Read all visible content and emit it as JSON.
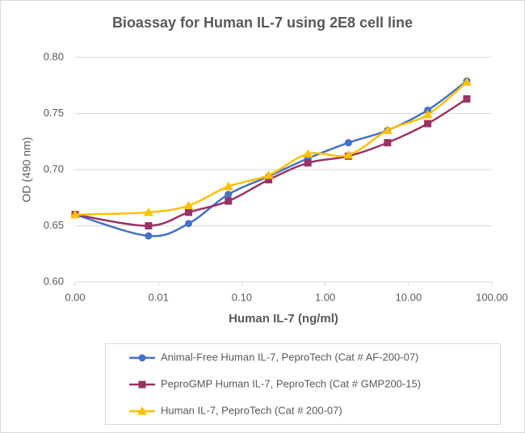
{
  "chart_data": {
    "type": "line",
    "title": "Bioassay for Human IL-7 using 2E8 cell line",
    "x_label": "Human IL-7 (ng/ml)",
    "y_label": "OD (490 nm)",
    "x": [
      0.001,
      0.0076,
      0.023,
      0.069,
      0.21,
      0.62,
      1.9,
      5.6,
      17,
      50
    ],
    "x_scale": "log",
    "xlim": [
      0.001,
      100
    ],
    "xticks": [
      {
        "value": 0.001,
        "label": "0.00"
      },
      {
        "value": 0.01,
        "label": "0.01"
      },
      {
        "value": 0.1,
        "label": "0.10"
      },
      {
        "value": 1,
        "label": "1.00"
      },
      {
        "value": 10,
        "label": "10.00"
      },
      {
        "value": 100,
        "label": "100.00"
      }
    ],
    "ylim": [
      0.6,
      0.8
    ],
    "yticks": [
      {
        "value": 0.6,
        "label": "0.60"
      },
      {
        "value": 0.65,
        "label": "0.65"
      },
      {
        "value": 0.7,
        "label": "0.70"
      },
      {
        "value": 0.75,
        "label": "0.75"
      },
      {
        "value": 0.8,
        "label": "0.80"
      }
    ],
    "grid": true,
    "smooth": true,
    "legend": "bottom",
    "series": [
      {
        "name": "Animal-Free Human IL-7, PeproTech (Cat # AF-200-07)",
        "color": "#4472c4",
        "marker": "circle",
        "values": [
          0.66,
          0.641,
          0.652,
          0.678,
          0.694,
          0.71,
          0.724,
          0.735,
          0.753,
          0.779
        ]
      },
      {
        "name": "PeproGMP Human IL-7, PeproTech (Cat # GMP200-15)",
        "color": "#993366",
        "marker": "square",
        "values": [
          0.66,
          0.65,
          0.662,
          0.672,
          0.691,
          0.706,
          0.712,
          0.724,
          0.741,
          0.763
        ]
      },
      {
        "name": "Human IL-7, PeproTech (Cat # 200-07)",
        "color": "#ffc000",
        "marker": "triangle",
        "values": [
          0.66,
          0.662,
          0.668,
          0.685,
          0.695,
          0.714,
          0.713,
          0.735,
          0.749,
          0.778
        ]
      }
    ]
  }
}
